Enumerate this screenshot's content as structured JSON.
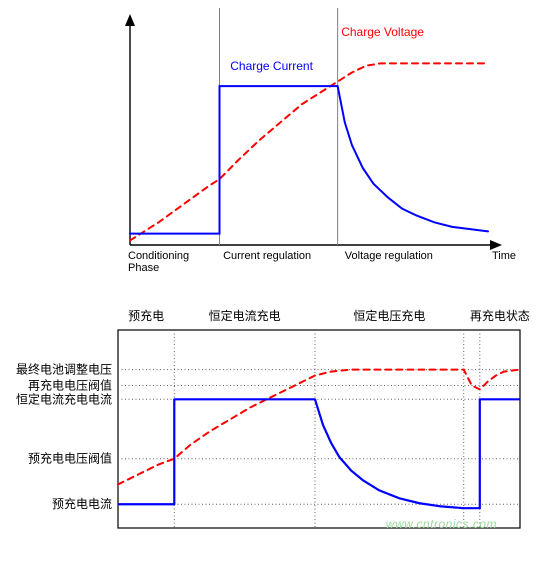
{
  "top_chart": {
    "type": "line",
    "background_color": "#ffffff",
    "axis_color": "#000000",
    "separator_color": "#808080",
    "separator_width": 1,
    "arrow_size": 6,
    "xlim": [
      0,
      100
    ],
    "ylim": [
      0,
      100
    ],
    "phase_boundaries_x": [
      25,
      58
    ],
    "conditioning_label": "Conditioning\nPhase",
    "current_reg_label": "Current regulation",
    "voltage_reg_label": "Voltage regulation",
    "time_label": "Time",
    "label_fontsize": 11,
    "label_color": "#000000",
    "charge_current": {
      "label": "Charge Current",
      "color": "#0000ff",
      "line_width": 2,
      "label_color": "#0000ff",
      "label_fontsize": 12,
      "data": [
        [
          0,
          5
        ],
        [
          25,
          5
        ],
        [
          25,
          70
        ],
        [
          58,
          70
        ],
        [
          60,
          54
        ],
        [
          62,
          44
        ],
        [
          65,
          34
        ],
        [
          68,
          27
        ],
        [
          72,
          21
        ],
        [
          76,
          16
        ],
        [
          80,
          13
        ],
        [
          85,
          10
        ],
        [
          90,
          8
        ],
        [
          95,
          7
        ],
        [
          100,
          6
        ]
      ]
    },
    "charge_voltage": {
      "label": "Charge Voltage",
      "color": "#ff0000",
      "line_width": 2,
      "dash": "6,5",
      "label_color": "#ff0000",
      "label_fontsize": 12,
      "data": [
        [
          0,
          2
        ],
        [
          8,
          10
        ],
        [
          15,
          18
        ],
        [
          22,
          26
        ],
        [
          25,
          29
        ],
        [
          30,
          37
        ],
        [
          36,
          46
        ],
        [
          42,
          54
        ],
        [
          48,
          62
        ],
        [
          54,
          68
        ],
        [
          58,
          72
        ],
        [
          62,
          76
        ],
        [
          66,
          79
        ],
        [
          70,
          80
        ],
        [
          100,
          80
        ]
      ]
    }
  },
  "bottom_chart": {
    "type": "line",
    "background_color": "#ffffff",
    "frame_color": "#000000",
    "frame_width": 1.2,
    "dotted_color": "#606060",
    "dotted_dash": "1,2.5",
    "dotted_width": 1,
    "xlim": [
      0,
      100
    ],
    "ylim": [
      0,
      100
    ],
    "phase_boundaries_x": [
      14,
      49,
      86,
      90
    ],
    "phase_labels": {
      "precharge": "预充电",
      "cc": "恒定电流充电",
      "cv": "恒定电压充电",
      "recharge": "再充电状态"
    },
    "phase_label_fontsize": 12,
    "y_thresholds": {
      "final_voltage": {
        "y": 80,
        "label": "最终电池调整电压"
      },
      "recharge_v_thresh": {
        "y": 72,
        "label": "再充电电压阀值"
      },
      "cc_current": {
        "y": 65,
        "label": "恒定电流充电电流"
      },
      "precharge_v_thresh": {
        "y": 35,
        "label": "预充电电压阀值"
      },
      "precharge_current": {
        "y": 12,
        "label": "预充电电流"
      }
    },
    "y_label_fontsize": 12,
    "current_trace": {
      "color": "#0000ff",
      "line_width": 2.2,
      "data": [
        [
          0,
          12
        ],
        [
          14,
          12
        ],
        [
          14,
          65
        ],
        [
          49,
          65
        ],
        [
          51,
          52
        ],
        [
          53,
          43
        ],
        [
          55,
          36
        ],
        [
          58,
          29
        ],
        [
          61,
          24
        ],
        [
          65,
          19
        ],
        [
          70,
          15
        ],
        [
          75,
          12.5
        ],
        [
          80,
          11
        ],
        [
          86,
          10
        ],
        [
          86,
          10
        ],
        [
          90,
          10
        ],
        [
          90,
          65
        ],
        [
          100,
          65
        ]
      ]
    },
    "voltage_trace": {
      "color": "#ff0000",
      "line_width": 2,
      "dash": "6,5",
      "data": [
        [
          0,
          22
        ],
        [
          5,
          27
        ],
        [
          10,
          32
        ],
        [
          14,
          35
        ],
        [
          18,
          42
        ],
        [
          23,
          49
        ],
        [
          28,
          55
        ],
        [
          33,
          61
        ],
        [
          38,
          66
        ],
        [
          43,
          71
        ],
        [
          47,
          75
        ],
        [
          49,
          77
        ],
        [
          53,
          79
        ],
        [
          58,
          80
        ],
        [
          86,
          80
        ],
        [
          87,
          76
        ],
        [
          88,
          72
        ],
        [
          90,
          70
        ],
        [
          92,
          74
        ],
        [
          94,
          77
        ],
        [
          96,
          79
        ],
        [
          100,
          80
        ]
      ]
    }
  },
  "watermark": "www.cntronics.com"
}
